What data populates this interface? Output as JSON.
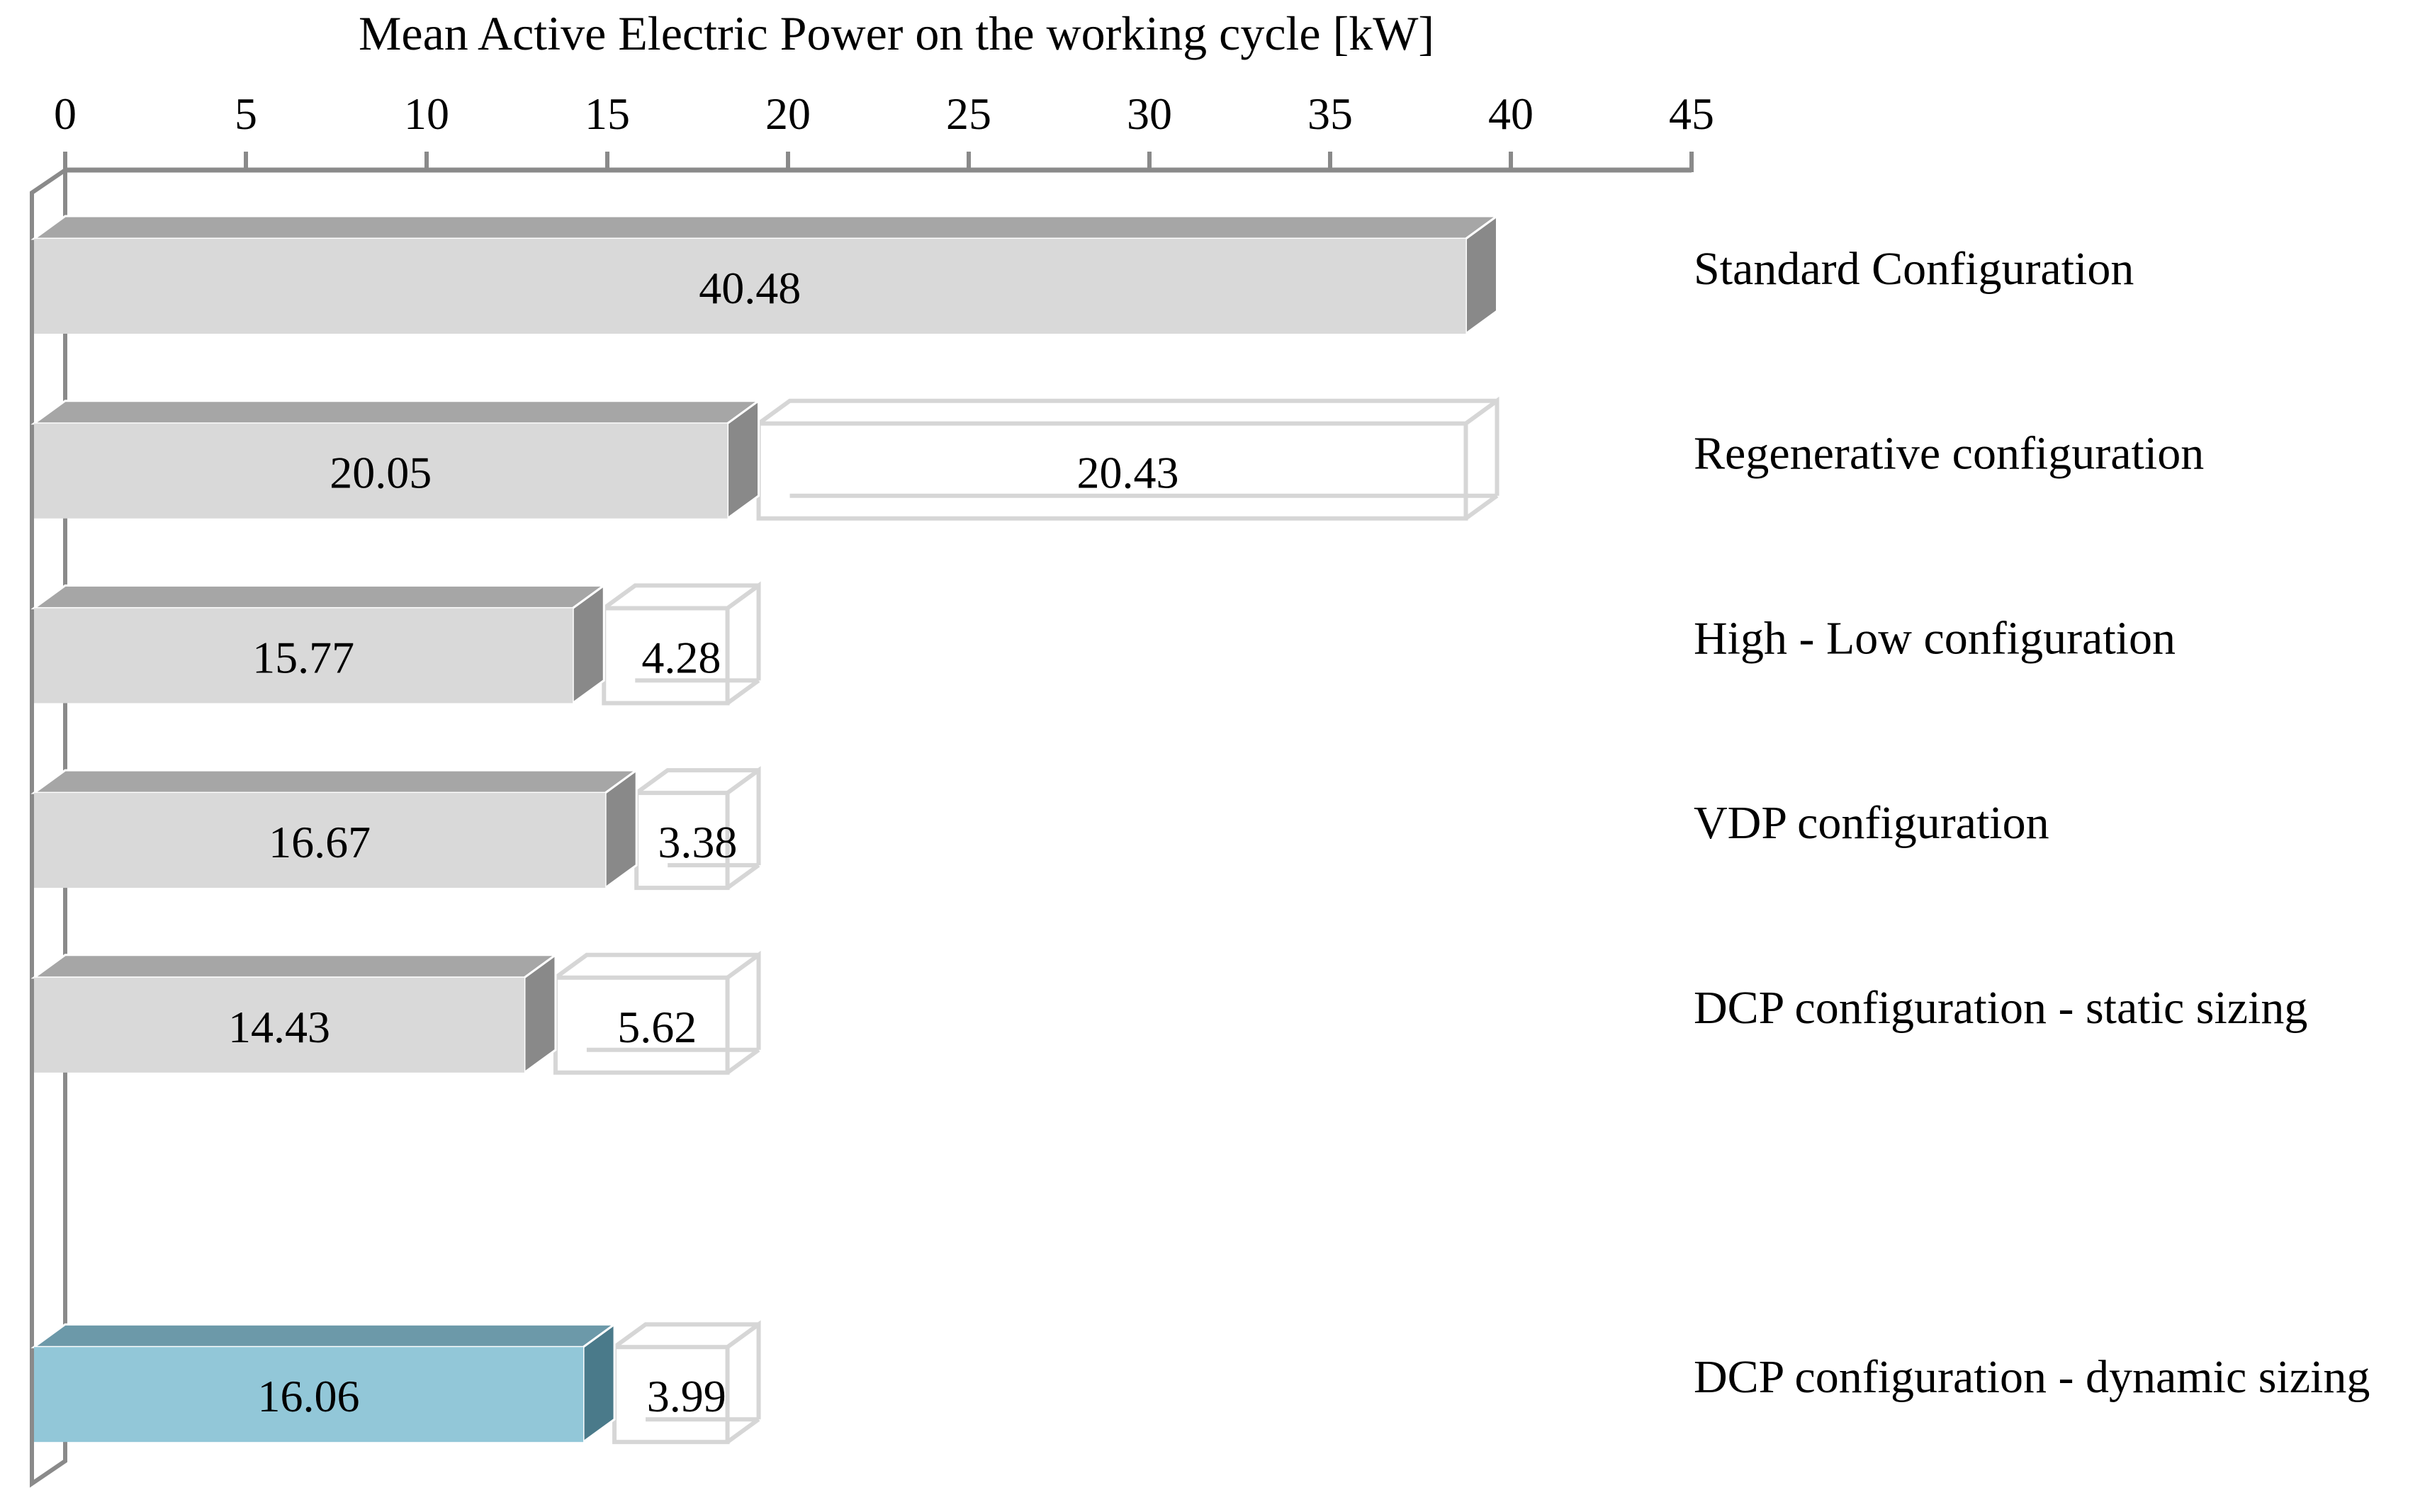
{
  "title": "Mean Active Electric Power on the working cycle [kW]",
  "chart_data": {
    "type": "bar",
    "variant": "3d-horizontal-stacked",
    "title": "Mean Active Electric Power on the working cycle [kW]",
    "value_unit": "kW",
    "axis": {
      "min": 0,
      "max": 45,
      "tick_step": 5,
      "tick_labels": [
        "0",
        "5",
        "10",
        "15",
        "20",
        "25",
        "30",
        "35",
        "40",
        "45"
      ],
      "position": "top",
      "grid": false
    },
    "categories": [
      "Standard Configuration",
      "Regenerative configuration",
      "High - Low configuration",
      "VDP configuration",
      "DCP configuration - static sizing",
      "DCP configuration - dynamic sizing"
    ],
    "row_slots": [
      0,
      1,
      2,
      3,
      4,
      6
    ],
    "series": [
      {
        "style": "solid",
        "values": [
          40.48,
          20.05,
          15.77,
          16.67,
          14.43,
          16.06
        ],
        "labels": [
          "40.48",
          "20.05",
          "15.77",
          "16.67",
          "14.43",
          "16.06"
        ]
      },
      {
        "style": "outline",
        "values": [
          null,
          20.43,
          4.28,
          3.38,
          5.62,
          3.99
        ],
        "labels": [
          null,
          "20.43",
          "4.28",
          "3.38",
          "5.62",
          "3.99"
        ]
      }
    ],
    "highlight_row": 5,
    "colors": {
      "solid_front": "#d9d9d9",
      "solid_top": "#a6a6a6",
      "solid_side": "#898989",
      "highlight_front": "#92c7d8",
      "highlight_top": "#6c99a9",
      "highlight_side": "#4a7a8a",
      "outline_edge": "#d6d6d6",
      "axis_line": "#8a8a8a",
      "label_text": "#000000"
    }
  }
}
